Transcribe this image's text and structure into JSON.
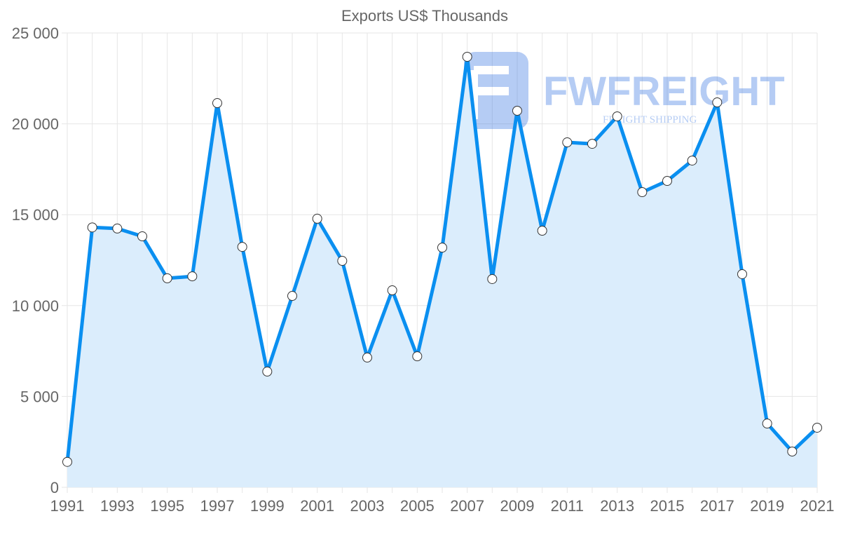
{
  "chart_data": {
    "type": "line",
    "title": "Exports US$ Thousands",
    "xlabel": "",
    "ylabel": "",
    "x": [
      1991,
      1992,
      1993,
      1994,
      1995,
      1996,
      1997,
      1998,
      1999,
      2000,
      2001,
      2002,
      2003,
      2004,
      2005,
      2006,
      2007,
      2008,
      2009,
      2010,
      2011,
      2012,
      2013,
      2014,
      2015,
      2016,
      2017,
      2018,
      2019,
      2020,
      2021
    ],
    "series": [
      {
        "name": "Exports US$ Thousands",
        "color": "#0a8ff0",
        "fill": "#dbedfc",
        "values": [
          1400,
          14300,
          14240,
          13810,
          11500,
          11610,
          21140,
          13230,
          6370,
          10530,
          14780,
          12460,
          7140,
          10840,
          7210,
          13190,
          23690,
          11460,
          20720,
          14120,
          18980,
          18900,
          20410,
          16240,
          16860,
          17980,
          21180,
          11730,
          3510,
          1970,
          3280
        ]
      }
    ],
    "ylim": [
      0,
      25000
    ],
    "xlim": [
      1991,
      2021
    ],
    "y_ticks": [
      "0",
      "5 000",
      "10 000",
      "15 000",
      "20 000",
      "25 000"
    ],
    "x_ticks": [
      "1991",
      "1993",
      "1995",
      "1997",
      "1999",
      "2001",
      "2003",
      "2005",
      "2007",
      "2009",
      "2011",
      "2013",
      "2015",
      "2017",
      "2019",
      "2021"
    ],
    "grid": true,
    "legend": "none"
  },
  "watermark": {
    "name": "FWFREIGHT",
    "tagline": "FREIGHT SHIPPING"
  }
}
